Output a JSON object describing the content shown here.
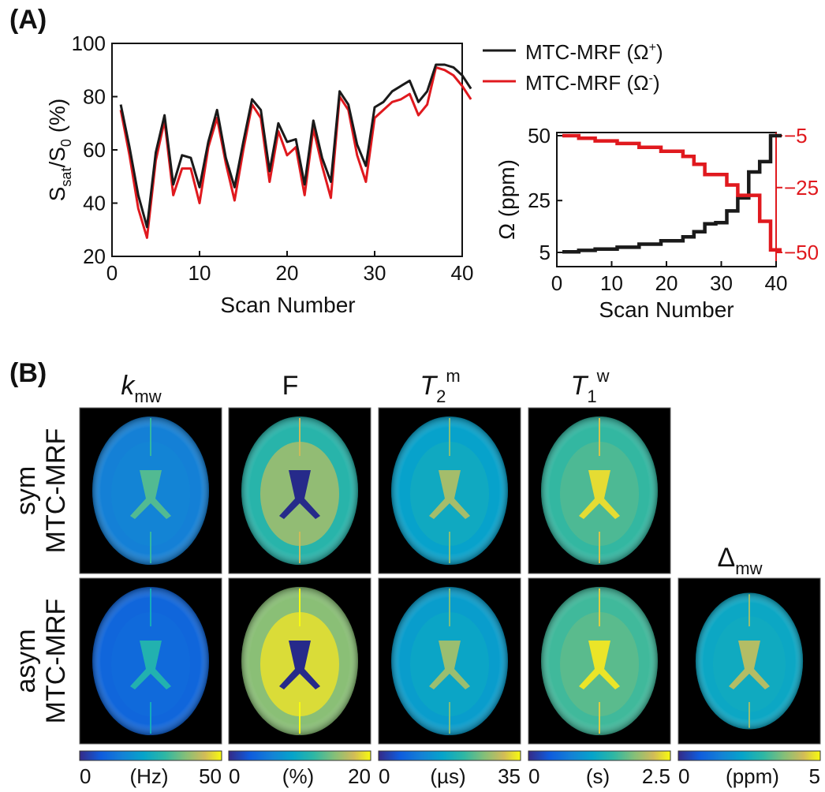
{
  "panels": {
    "a_label": "(A)",
    "b_label": "(B)"
  },
  "colors": {
    "plus": "#1a1a1a",
    "minus": "#e0191e",
    "axis": "#111111"
  },
  "chart_data": [
    {
      "id": "signal",
      "type": "line",
      "xlabel": "Scan Number",
      "ylabel_parts": [
        "S",
        "sat",
        "/S",
        "0",
        " (%)"
      ],
      "xlim": [
        0,
        40
      ],
      "ylim": [
        20,
        100
      ],
      "xticks": [
        0,
        10,
        20,
        30,
        40
      ],
      "yticks": [
        20,
        40,
        60,
        80,
        100
      ],
      "x": [
        1,
        2,
        3,
        4,
        5,
        6,
        7,
        8,
        9,
        10,
        11,
        12,
        13,
        14,
        15,
        16,
        17,
        18,
        19,
        20,
        21,
        22,
        23,
        24,
        25,
        26,
        27,
        28,
        29,
        30,
        31,
        32,
        33,
        34,
        35,
        36,
        37,
        38,
        39,
        40,
        41
      ],
      "legend_position": "top-right, outside",
      "series": [
        {
          "name": "MTC-MRF (Ω⁺)",
          "name_parts": [
            "MTC-MRF (Ω",
            "+",
            ")"
          ],
          "color": "#1a1a1a",
          "values": [
            77,
            61,
            43,
            31,
            59,
            73,
            47,
            58,
            57,
            46,
            63,
            75,
            57,
            46,
            63,
            79,
            75,
            52,
            70,
            63,
            64,
            47,
            71,
            57,
            48,
            82,
            77,
            62,
            54,
            76,
            78,
            82,
            84,
            86,
            78,
            82,
            92,
            92,
            91,
            88,
            83
          ]
        },
        {
          "name": "MTC-MRF (Ω⁻)",
          "name_parts": [
            "MTC-MRF (Ω",
            "-",
            ")"
          ],
          "color": "#e0191e",
          "values": [
            75,
            58,
            38,
            27,
            56,
            71,
            43,
            53,
            53,
            40,
            61,
            72,
            55,
            41,
            60,
            77,
            72,
            48,
            67,
            58,
            61,
            43,
            68,
            54,
            42,
            80,
            75,
            58,
            48,
            72,
            75,
            78,
            79,
            81,
            73,
            77,
            91,
            90,
            88,
            84,
            79
          ]
        }
      ]
    },
    {
      "id": "omega",
      "type": "line",
      "xlabel": "Scan Number",
      "ylabel": "Ω  (ppm)",
      "xlim": [
        0,
        40
      ],
      "xticks": [
        0,
        10,
        20,
        30,
        40
      ],
      "ylim_left": [
        5,
        50
      ],
      "yticks_left": [
        5,
        25,
        50
      ],
      "ylim_right": [
        -50,
        -5
      ],
      "yticks_right_labels": [
        "−5",
        "−25",
        "−50"
      ],
      "yticks_right": [
        -5,
        -25,
        -50
      ],
      "series": [
        {
          "name": "Ω⁺",
          "axis": "left",
          "color": "#1a1a1a",
          "steps_x": [
            1,
            4,
            7,
            11,
            15,
            19,
            23,
            25,
            27,
            29,
            31,
            33,
            35,
            37,
            39,
            41
          ],
          "steps_y": [
            5.2,
            5.8,
            6.3,
            7.0,
            8.2,
            9.5,
            11,
            13,
            16,
            16.5,
            21,
            26,
            36,
            40,
            50,
            50
          ]
        },
        {
          "name": "Ω⁻",
          "axis": "right",
          "color": "#e0191e",
          "steps_x": [
            1,
            4,
            7,
            11,
            15,
            19,
            23,
            25,
            27,
            29,
            31,
            33,
            35,
            37,
            39,
            41
          ],
          "steps_y": [
            -5,
            -6,
            -7,
            -8,
            -9.5,
            -11,
            -13,
            -16,
            -20,
            -20,
            -24,
            -28,
            -28,
            -38,
            -49,
            -49
          ]
        }
      ]
    }
  ],
  "maps": {
    "columns": [
      {
        "title_main": "k",
        "title_sub": "mw",
        "title_sup": "",
        "italic": true,
        "colorbar": {
          "min": "0",
          "unit": "(Hz)",
          "max": "50"
        }
      },
      {
        "title_main": "F",
        "title_sub": "",
        "title_sup": "",
        "italic": false,
        "colorbar": {
          "min": "0",
          "unit": "(%)",
          "max": "20"
        }
      },
      {
        "title_main": "T",
        "title_sub": "2",
        "title_sup": "m",
        "italic": true,
        "colorbar": {
          "min": "0",
          "unit": "(µs)",
          "max": "35"
        }
      },
      {
        "title_main": "T",
        "title_sub": "1",
        "title_sup": "w",
        "italic": true,
        "colorbar": {
          "min": "0",
          "unit": "(s)",
          "max": "2.5"
        }
      },
      {
        "title_main": "Δ",
        "title_sub": "mw",
        "title_sup": "",
        "italic": false,
        "colorbar": {
          "min": "0",
          "unit": "(ppm)",
          "max": "5"
        }
      }
    ],
    "rows": [
      {
        "label_line1": "sym",
        "label_line2": "MTC-MRF"
      },
      {
        "label_line1": "asym",
        "label_line2": "MTC-MRF"
      }
    ],
    "colormap": "parula",
    "tone_levels": [
      [
        0.28,
        0.55,
        0.42,
        0.58,
        null
      ],
      [
        0.18,
        0.72,
        0.4,
        0.6,
        0.45
      ]
    ]
  }
}
